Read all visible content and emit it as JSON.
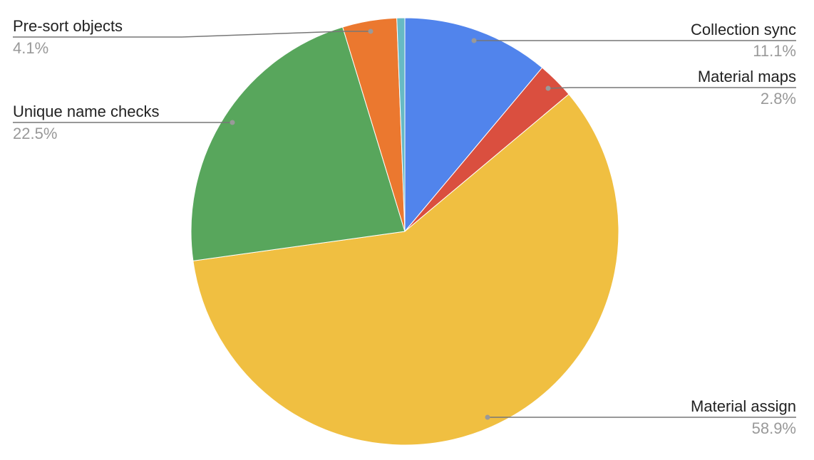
{
  "chart_data": {
    "type": "pie",
    "start_angle": "12 o'clock",
    "direction": "clockwise",
    "legend": "none (leader-line labels)",
    "slices": [
      {
        "label": "Collection sync",
        "value": 11.1,
        "pct_label": "11.1%",
        "color": "#5184EC"
      },
      {
        "label": "Material maps",
        "value": 2.8,
        "pct_label": "2.8%",
        "color": "#DA4F3F"
      },
      {
        "label": "Material assign",
        "value": 58.9,
        "pct_label": "58.9%",
        "color": "#F0BF41"
      },
      {
        "label": "Unique name checks",
        "value": 22.5,
        "pct_label": "22.5%",
        "color": "#58A65C"
      },
      {
        "label": "Pre-sort objects",
        "value": 4.1,
        "pct_label": "4.1%",
        "color": "#EB782F"
      },
      {
        "label": "",
        "value": 0.6,
        "pct_label": "",
        "color": "#67BAC4"
      }
    ]
  }
}
